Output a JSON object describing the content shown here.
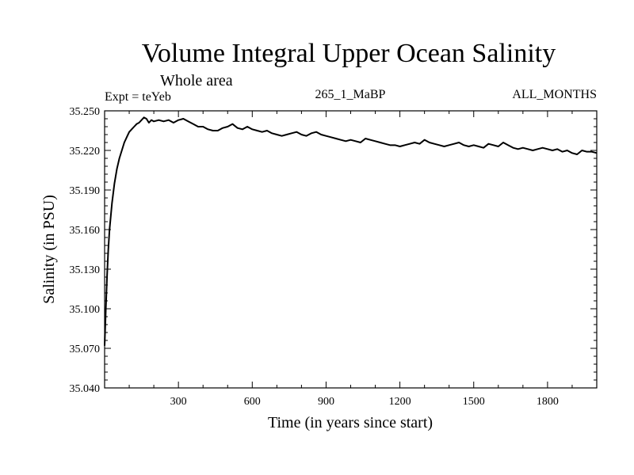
{
  "chart_data": {
    "type": "line",
    "title": "Volume Integral Upper Ocean Salinity",
    "subtitle": "Whole area",
    "experiment_label": "Expt = teYeb",
    "run_label": "265_1_MaBP",
    "period_label": "ALL_MONTHS",
    "xlabel": "Time (in years since start)",
    "ylabel": "Salinity (in PSU)",
    "xlim": [
      0,
      2000
    ],
    "ylim": [
      35.04,
      35.25
    ],
    "xticks": [
      300,
      600,
      900,
      1200,
      1500,
      1800
    ],
    "xtick_labels": [
      "300",
      "600",
      "900",
      "1200",
      "1500",
      "1800"
    ],
    "yticks": [
      35.04,
      35.07,
      35.1,
      35.13,
      35.16,
      35.19,
      35.22,
      35.25
    ],
    "ytick_labels": [
      "35.040",
      "35.070",
      "35.100",
      "35.130",
      "35.160",
      "35.190",
      "35.220",
      "35.250"
    ],
    "grid": false,
    "series": [
      {
        "name": "Salinity",
        "color": "#000000",
        "x": [
          0,
          5,
          10,
          15,
          20,
          30,
          40,
          50,
          60,
          70,
          80,
          90,
          100,
          110,
          120,
          130,
          140,
          150,
          160,
          170,
          180,
          190,
          200,
          220,
          240,
          260,
          280,
          300,
          320,
          340,
          360,
          380,
          400,
          420,
          440,
          460,
          480,
          500,
          520,
          540,
          560,
          580,
          600,
          620,
          640,
          660,
          680,
          700,
          720,
          740,
          760,
          780,
          800,
          820,
          840,
          860,
          880,
          900,
          920,
          940,
          960,
          980,
          1000,
          1020,
          1040,
          1060,
          1080,
          1100,
          1120,
          1140,
          1160,
          1180,
          1200,
          1220,
          1240,
          1260,
          1280,
          1300,
          1320,
          1340,
          1360,
          1380,
          1400,
          1420,
          1440,
          1460,
          1480,
          1500,
          1520,
          1540,
          1560,
          1580,
          1600,
          1620,
          1640,
          1660,
          1680,
          1700,
          1720,
          1740,
          1760,
          1780,
          1800,
          1820,
          1840,
          1860,
          1880,
          1900,
          1920,
          1940,
          1960,
          1980,
          2000
        ],
        "values": [
          35.072,
          35.1,
          35.125,
          35.145,
          35.16,
          35.18,
          35.195,
          35.206,
          35.214,
          35.22,
          35.226,
          35.23,
          35.234,
          35.236,
          35.238,
          35.24,
          35.241,
          35.243,
          35.245,
          35.244,
          35.241,
          35.243,
          35.242,
          35.243,
          35.242,
          35.243,
          35.241,
          35.243,
          35.244,
          35.242,
          35.24,
          35.238,
          35.238,
          35.236,
          35.235,
          35.235,
          35.237,
          35.238,
          35.24,
          35.237,
          35.236,
          35.238,
          35.236,
          35.235,
          35.234,
          35.235,
          35.233,
          35.232,
          35.231,
          35.232,
          35.233,
          35.234,
          35.232,
          35.231,
          35.233,
          35.234,
          35.232,
          35.231,
          35.23,
          35.229,
          35.228,
          35.227,
          35.228,
          35.227,
          35.226,
          35.229,
          35.228,
          35.227,
          35.226,
          35.225,
          35.224,
          35.224,
          35.223,
          35.224,
          35.225,
          35.226,
          35.225,
          35.228,
          35.226,
          35.225,
          35.224,
          35.223,
          35.224,
          35.225,
          35.226,
          35.224,
          35.223,
          35.224,
          35.223,
          35.222,
          35.225,
          35.224,
          35.223,
          35.226,
          35.224,
          35.222,
          35.221,
          35.222,
          35.221,
          35.22,
          35.221,
          35.222,
          35.221,
          35.22,
          35.221,
          35.219,
          35.22,
          35.218,
          35.217,
          35.22,
          35.219,
          35.219,
          35.218
        ]
      }
    ]
  }
}
